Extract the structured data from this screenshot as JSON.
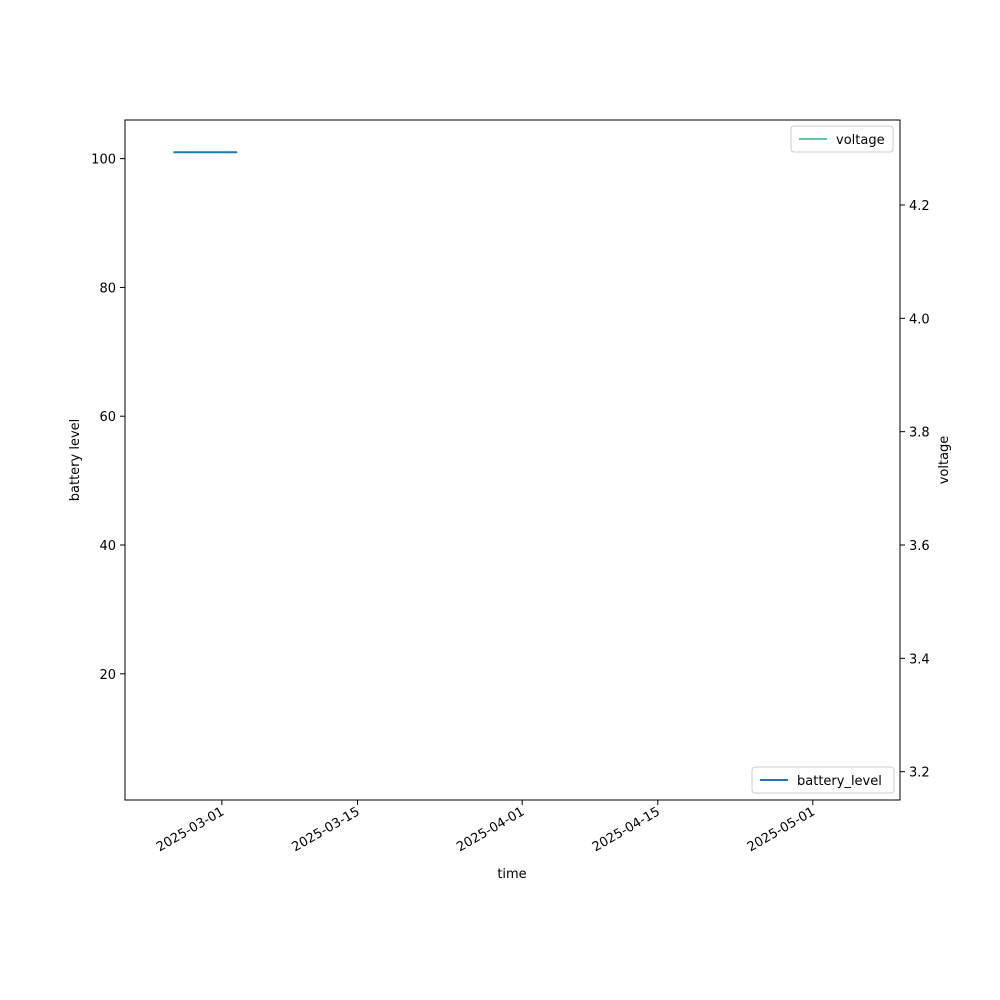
{
  "chart_data": {
    "type": "line",
    "title": "",
    "xlabel": "time",
    "ylabel": "battery level",
    "ylabel_right": "voltage",
    "xlim": [
      "2025-02-19",
      "2025-05-10"
    ],
    "ylim": [
      0.4,
      106
    ],
    "ylim_right": [
      3.15,
      4.35
    ],
    "x_ticks": [
      "2025-03-01",
      "2025-03-15",
      "2025-04-01",
      "2025-04-15",
      "2025-05-01"
    ],
    "y_ticks": [
      20,
      40,
      60,
      80,
      100
    ],
    "y_ticks_right": [
      3.2,
      3.4,
      3.6,
      3.8,
      4.0,
      4.2
    ],
    "grid": false,
    "series": [
      {
        "name": "battery_level",
        "axis": "left",
        "color": "#1f77b4",
        "legend_location": "lower-right",
        "points": [
          [
            "2025-02-24T00:00",
            101
          ],
          [
            "2025-02-25T00:00",
            101
          ],
          [
            "2025-02-26T00:00",
            101
          ],
          [
            "2025-02-27T00:00",
            101
          ],
          [
            "2025-02-27T12:00",
            101
          ],
          [
            "2025-02-28T00:00",
            101
          ],
          [
            "2025-02-28T15:00",
            101
          ],
          [
            "2025-02-28T16:00",
            101
          ],
          [
            "2025-03-01T12:00",
            101
          ],
          [
            "2025-02-28T16:00",
            101
          ],
          [
            "2025-03-01T12:00",
            101
          ],
          [
            "2025-03-02T00:00",
            101
          ],
          [
            "2025-03-02T12:00",
            101
          ],
          [
            "2025-03-01T12:00",
            101
          ]
        ]
      },
      {
        "name": "voltage",
        "axis": "right",
        "color": "#66c2a5",
        "legend_location": "upper-right",
        "points": []
      }
    ]
  }
}
